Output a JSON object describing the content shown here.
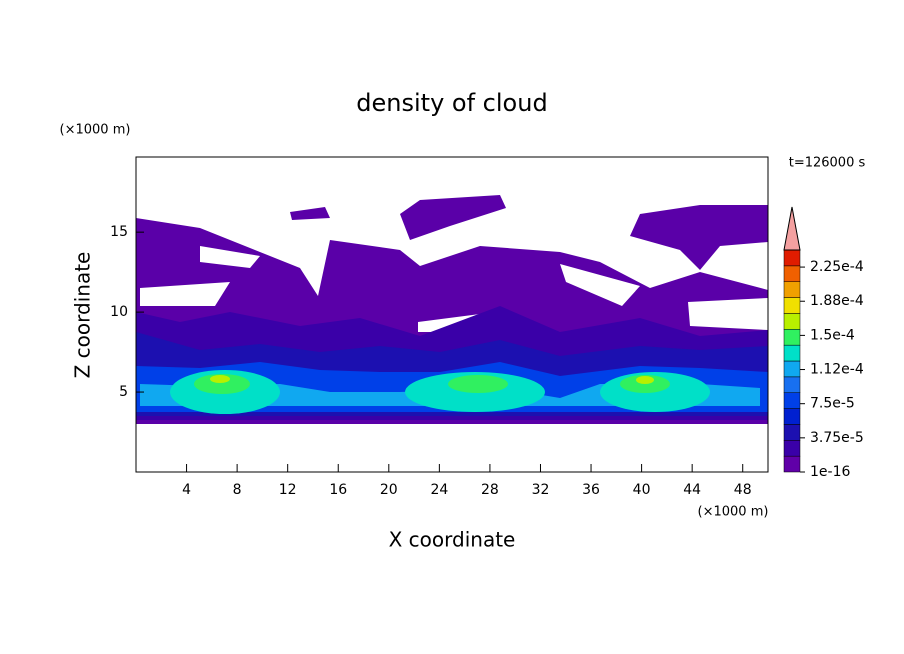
{
  "chart_data": {
    "type": "contour",
    "title": "density of cloud",
    "x_label": "X coordinate",
    "y_label": "Z coordinate",
    "x_unit": "(×1000 m)",
    "y_unit": "(×1000 m)",
    "annotation": "t=126000 s",
    "xlim": [
      0,
      50
    ],
    "ylim": [
      0,
      19.7
    ],
    "xticks": [
      4,
      8,
      12,
      16,
      20,
      24,
      28,
      32,
      36,
      40,
      44,
      48
    ],
    "yticks": [
      5,
      10,
      15
    ],
    "colorbar": {
      "lim": [
        1e-16,
        0.00024375
      ],
      "ticks": [
        {
          "value": 1e-16,
          "label": "1e-16"
        },
        {
          "value": 3.75e-05,
          "label": "3.75e-5"
        },
        {
          "value": 7.5e-05,
          "label": "7.5e-5"
        },
        {
          "value": 0.0001125,
          "label": "1.12e-4"
        },
        {
          "value": 0.00015,
          "label": "1.5e-4"
        },
        {
          "value": 0.0001875,
          "label": "1.88e-4"
        },
        {
          "value": 0.000225,
          "label": "2.25e-4"
        }
      ],
      "colors": [
        "#6000a8",
        "#3a00a8",
        "#1c10b0",
        "#0020d0",
        "#0040e8",
        "#1870f0",
        "#10a8f0",
        "#00e0c8",
        "#30f060",
        "#b8f000",
        "#f0e000",
        "#f0a000",
        "#f06000",
        "#e01c00"
      ],
      "extend_color": "#f4a0a0"
    }
  }
}
